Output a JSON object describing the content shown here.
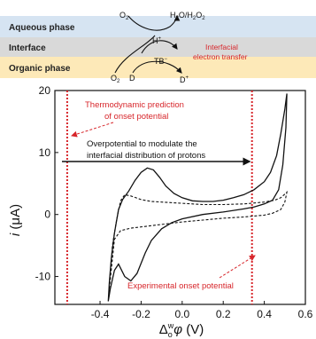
{
  "scheme": {
    "bands": {
      "aqueous": "Aqueous phase",
      "interface": "Interface",
      "organic": "Organic phase"
    },
    "species": {
      "o2_top": "O",
      "o2_top_sub": "2",
      "h2o_h2o2": "H",
      "h2o_h2o2_parts": [
        "H",
        "2",
        "O/H",
        "2",
        "O",
        "2"
      ],
      "h_plus": "H",
      "h_plus_sup": "+",
      "tb_minus": "TB",
      "tb_minus_sup": "−",
      "o2_bottom": "O",
      "o2_bottom_sub": "2",
      "d": "D",
      "d_plus": "D",
      "d_plus_sup": "+"
    },
    "interfacial_label_line1": "Interfacial",
    "interfacial_label_line2": "electron transfer",
    "colors": {
      "aqueous": "#d6e4f2",
      "interface": "#d9d9d9",
      "organic": "#fde9b8",
      "accent_red": "#d7262b"
    }
  },
  "annotations": {
    "thermo_line1": "Thermodynamic prediction",
    "thermo_line2": "of onset potential",
    "overpotential_line1": "Overpotential to modulate the",
    "overpotential_line2": "interfacial distribution of protons",
    "experimental": "Experimental onset potential"
  },
  "chart_data": {
    "type": "line",
    "xlabel": "Δ_o^w φ (V)",
    "xlabel_parts": {
      "delta": "Δ",
      "sup": "w",
      "sub": "o",
      "phi": "φ",
      "unit": " (V)"
    },
    "ylabel": "i (μA)",
    "ylabel_parts": {
      "i": "i",
      "unit": " (μA)"
    },
    "xlim": [
      -0.62,
      0.6
    ],
    "ylim": [
      -14.5,
      20
    ],
    "xticks": [
      -0.4,
      -0.2,
      0.0,
      0.2,
      0.4,
      0.6
    ],
    "xtick_labels": [
      "-0.4",
      "-0.2",
      "0.0",
      "0.2",
      "0.4",
      "0.6"
    ],
    "yticks": [
      -10,
      0,
      10,
      20
    ],
    "ytick_labels": [
      "-10",
      "0",
      "10",
      "20"
    ],
    "vertical_lines": [
      {
        "x": -0.56,
        "style": "dotted",
        "color": "#d7262b",
        "meaning": "thermodynamic prediction"
      },
      {
        "x": 0.34,
        "style": "dotted",
        "color": "#d7262b",
        "meaning": "experimental onset"
      }
    ],
    "series": [
      {
        "style": "solid",
        "forward": [
          [
            -0.36,
            -14
          ],
          [
            -0.355,
            -11
          ],
          [
            -0.345,
            -7
          ],
          [
            -0.33,
            -3
          ],
          [
            -0.31,
            0.8
          ],
          [
            -0.29,
            2.4
          ],
          [
            -0.26,
            3.8
          ],
          [
            -0.23,
            5.5
          ],
          [
            -0.2,
            6.8
          ],
          [
            -0.17,
            7.5
          ],
          [
            -0.14,
            7.2
          ],
          [
            -0.11,
            6
          ],
          [
            -0.08,
            4.6
          ],
          [
            -0.04,
            3.4
          ],
          [
            0.0,
            2.7
          ],
          [
            0.05,
            2.2
          ],
          [
            0.1,
            2.1
          ],
          [
            0.15,
            2.1
          ],
          [
            0.2,
            2.3
          ],
          [
            0.25,
            2.7
          ],
          [
            0.3,
            3.2
          ],
          [
            0.35,
            4
          ],
          [
            0.4,
            5.3
          ],
          [
            0.43,
            6.8
          ],
          [
            0.46,
            9.5
          ],
          [
            0.48,
            13
          ],
          [
            0.5,
            17
          ],
          [
            0.51,
            19.5
          ]
        ],
        "reverse": [
          [
            0.51,
            19.5
          ],
          [
            0.505,
            14
          ],
          [
            0.49,
            8
          ],
          [
            0.47,
            4
          ],
          [
            0.44,
            2.3
          ],
          [
            0.4,
            1.7
          ],
          [
            0.35,
            1.2
          ],
          [
            0.3,
            0.9
          ],
          [
            0.2,
            0.4
          ],
          [
            0.1,
            0.0
          ],
          [
            0.0,
            -0.7
          ],
          [
            -0.05,
            -1.3
          ],
          [
            -0.1,
            -2.3
          ],
          [
            -0.15,
            -4.2
          ],
          [
            -0.18,
            -6.2
          ],
          [
            -0.22,
            -9.5
          ],
          [
            -0.25,
            -10.7
          ],
          [
            -0.28,
            -10
          ],
          [
            -0.31,
            -8
          ],
          [
            -0.33,
            -9
          ],
          [
            -0.35,
            -12
          ],
          [
            -0.36,
            -14
          ]
        ]
      },
      {
        "style": "dashed",
        "forward": [
          [
            -0.355,
            -12
          ],
          [
            -0.34,
            -5
          ],
          [
            -0.32,
            -1
          ],
          [
            -0.3,
            2.2
          ],
          [
            -0.28,
            3.2
          ],
          [
            -0.25,
            3
          ],
          [
            -0.2,
            2.4
          ],
          [
            -0.15,
            2.1
          ],
          [
            -0.1,
            2
          ],
          [
            0.0,
            1.8
          ],
          [
            0.1,
            1.6
          ],
          [
            0.2,
            1.6
          ],
          [
            0.3,
            1.7
          ],
          [
            0.4,
            2
          ],
          [
            0.45,
            2.3
          ],
          [
            0.48,
            2.7
          ],
          [
            0.5,
            3.3
          ],
          [
            0.51,
            3.6
          ]
        ],
        "reverse": [
          [
            0.51,
            3.6
          ],
          [
            0.5,
            2
          ],
          [
            0.48,
            0.8
          ],
          [
            0.44,
            0.2
          ],
          [
            0.4,
            -0.1
          ],
          [
            0.3,
            -0.4
          ],
          [
            0.2,
            -0.6
          ],
          [
            0.1,
            -0.9
          ],
          [
            0.0,
            -1.2
          ],
          [
            -0.1,
            -1.6
          ],
          [
            -0.2,
            -2
          ],
          [
            -0.25,
            -2.2
          ],
          [
            -0.3,
            -2.6
          ],
          [
            -0.33,
            -4
          ],
          [
            -0.355,
            -12
          ]
        ]
      }
    ]
  }
}
